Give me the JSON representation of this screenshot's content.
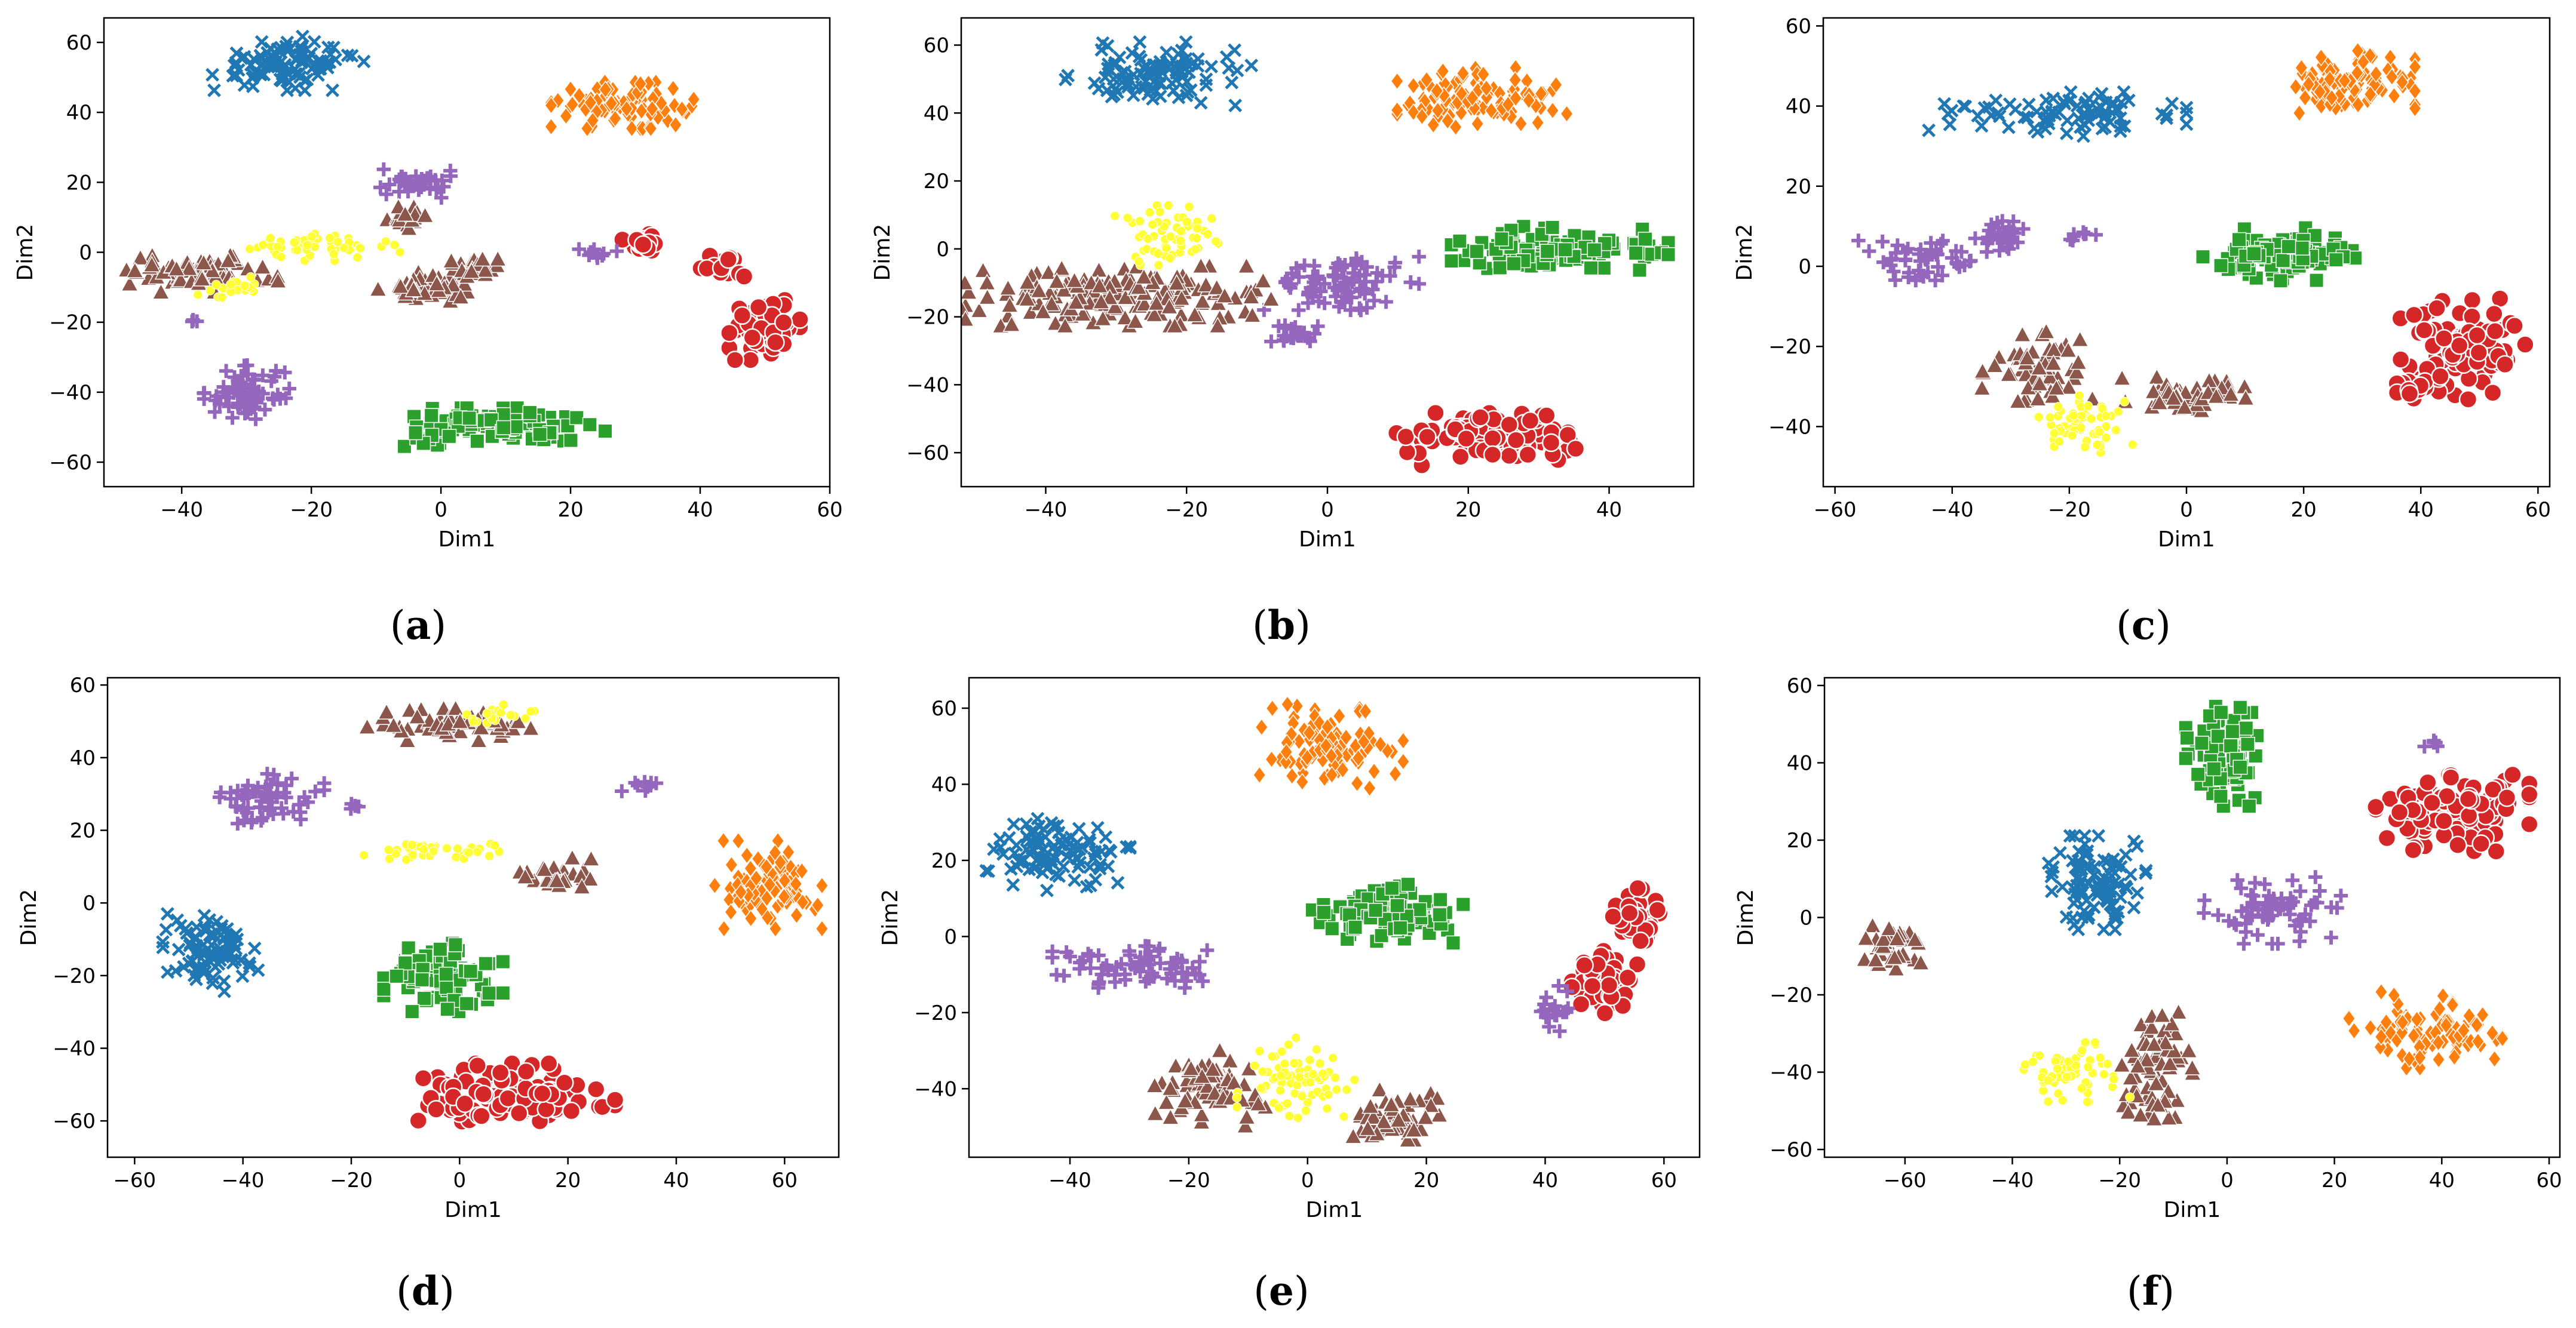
{
  "chart_data": [
    {
      "type": "scatter",
      "panel_label": "a",
      "xlabel": "Dim1",
      "ylabel": "Dim2",
      "xlim": [
        -52,
        60
      ],
      "ylim": [
        -67,
        67
      ],
      "xticks": [
        -40,
        -20,
        0,
        20,
        40,
        60
      ],
      "yticks": [
        -60,
        -40,
        -20,
        0,
        20,
        40,
        60
      ],
      "clusters": [
        {
          "cls": 0,
          "cx": -24,
          "cy": 54,
          "rx": 11,
          "ry": 7,
          "n": 100
        },
        {
          "cls": 1,
          "cx": 28,
          "cy": 42,
          "rx": 10,
          "ry": 6,
          "n": 100
        },
        {
          "cls": 2,
          "cx": 9,
          "cy": -50,
          "rx": 15,
          "ry": 5,
          "n": 100
        },
        {
          "cls": 3,
          "cx": 32,
          "cy": 3,
          "rx": 5,
          "ry": 2.5,
          "n": 25
        },
        {
          "cls": 3,
          "cx": 43,
          "cy": -4,
          "rx": 4,
          "ry": 3,
          "n": 20
        },
        {
          "cls": 3,
          "cx": 50,
          "cy": -22,
          "rx": 5,
          "ry": 8,
          "n": 50
        },
        {
          "cls": 4,
          "cx": -30,
          "cy": -40,
          "rx": 6,
          "ry": 7,
          "n": 70
        },
        {
          "cls": 4,
          "cx": -4,
          "cy": 20,
          "rx": 5,
          "ry": 4,
          "n": 35
        },
        {
          "cls": 4,
          "cx": 24,
          "cy": 0,
          "rx": 4,
          "ry": 1.5,
          "n": 10
        },
        {
          "cls": 4,
          "cx": -38,
          "cy": -20,
          "rx": 1,
          "ry": 1,
          "n": 3
        },
        {
          "cls": 5,
          "cx": -38,
          "cy": -6,
          "rx": 12,
          "ry": 5,
          "n": 80
        },
        {
          "cls": 5,
          "cx": -5,
          "cy": 10,
          "rx": 3,
          "ry": 3,
          "n": 20
        },
        {
          "cls": 5,
          "cx": -2,
          "cy": -10,
          "rx": 7,
          "ry": 4,
          "n": 50
        },
        {
          "cls": 5,
          "cx": 6,
          "cy": -4,
          "rx": 4,
          "ry": 3,
          "n": 25
        },
        {
          "cls": 6,
          "cx": -18,
          "cy": 2,
          "rx": 12,
          "ry": 4,
          "n": 55
        },
        {
          "cls": 6,
          "cx": -32,
          "cy": -10,
          "rx": 5,
          "ry": 3,
          "n": 20
        }
      ]
    },
    {
      "type": "scatter",
      "panel_label": "b",
      "xlabel": "Dim1",
      "ylabel": "Dim2",
      "xlim": [
        -52,
        52
      ],
      "ylim": [
        -70,
        68
      ],
      "xticks": [
        -40,
        -20,
        0,
        20,
        40
      ],
      "yticks": [
        -60,
        -40,
        -20,
        0,
        20,
        40,
        60
      ],
      "clusters": [
        {
          "cls": 0,
          "cx": -24,
          "cy": 51,
          "rx": 12,
          "ry": 9,
          "n": 100
        },
        {
          "cls": 1,
          "cx": 22,
          "cy": 44,
          "rx": 11,
          "ry": 9,
          "n": 100
        },
        {
          "cls": 2,
          "cx": 33,
          "cy": 0,
          "rx": 14,
          "ry": 6,
          "n": 110
        },
        {
          "cls": 3,
          "cx": 23,
          "cy": -56,
          "rx": 12,
          "ry": 7,
          "n": 110
        },
        {
          "cls": 4,
          "cx": 2,
          "cy": -10,
          "rx": 10,
          "ry": 8,
          "n": 90
        },
        {
          "cls": 4,
          "cx": -4,
          "cy": -25,
          "rx": 4,
          "ry": 4,
          "n": 20
        },
        {
          "cls": 5,
          "cx": -30,
          "cy": -14,
          "rx": 20,
          "ry": 8,
          "n": 180
        },
        {
          "cls": 6,
          "cx": -22,
          "cy": 4,
          "rx": 8,
          "ry": 8,
          "n": 60
        }
      ]
    },
    {
      "type": "scatter",
      "panel_label": "c",
      "xlabel": "Dim1",
      "ylabel": "Dim2",
      "xlim": [
        -62,
        62
      ],
      "ylim": [
        -55,
        62
      ],
      "xticks": [
        -60,
        -40,
        -20,
        0,
        20,
        40,
        60
      ],
      "yticks": [
        -40,
        -20,
        0,
        20,
        40,
        60
      ],
      "clusters": [
        {
          "cls": 0,
          "cx": -22,
          "cy": 38,
          "rx": 20,
          "ry": 5,
          "n": 90
        },
        {
          "cls": 1,
          "cx": 28,
          "cy": 45,
          "rx": 10,
          "ry": 8,
          "n": 100
        },
        {
          "cls": 2,
          "cx": 16,
          "cy": 3,
          "rx": 12,
          "ry": 6,
          "n": 100
        },
        {
          "cls": 3,
          "cx": 47,
          "cy": -20,
          "rx": 10,
          "ry": 12,
          "n": 90
        },
        {
          "cls": 3,
          "cx": 40,
          "cy": -30,
          "rx": 5,
          "ry": 4,
          "n": 25
        },
        {
          "cls": 4,
          "cx": -45,
          "cy": 2,
          "rx": 10,
          "ry": 5,
          "n": 50
        },
        {
          "cls": 4,
          "cx": -32,
          "cy": 8,
          "rx": 4,
          "ry": 4,
          "n": 30
        },
        {
          "cls": 4,
          "cx": -18,
          "cy": 8,
          "rx": 3,
          "ry": 2,
          "n": 8
        },
        {
          "cls": 5,
          "cx": -25,
          "cy": -25,
          "rx": 9,
          "ry": 8,
          "n": 70
        },
        {
          "cls": 5,
          "cx": 0,
          "cy": -32,
          "rx": 10,
          "ry": 4,
          "n": 50
        },
        {
          "cls": 6,
          "cx": -18,
          "cy": -40,
          "rx": 8,
          "ry": 7,
          "n": 60
        }
      ]
    },
    {
      "type": "scatter",
      "panel_label": "d",
      "xlabel": "Dim1",
      "ylabel": "Dim2",
      "xlim": [
        -65,
        70
      ],
      "ylim": [
        -70,
        62
      ],
      "xticks": [
        -60,
        -40,
        -20,
        0,
        20,
        40,
        60
      ],
      "yticks": [
        -60,
        -40,
        -20,
        0,
        20,
        40,
        60
      ],
      "clusters": [
        {
          "cls": 0,
          "cx": -46,
          "cy": -14,
          "rx": 8,
          "ry": 10,
          "n": 90
        },
        {
          "cls": 1,
          "cx": 57,
          "cy": 5,
          "rx": 9,
          "ry": 11,
          "n": 100
        },
        {
          "cls": 2,
          "cx": -3,
          "cy": -20,
          "rx": 10,
          "ry": 9,
          "n": 90
        },
        {
          "cls": 3,
          "cx": 10,
          "cy": -53,
          "rx": 17,
          "ry": 8,
          "n": 120
        },
        {
          "cls": 4,
          "cx": -36,
          "cy": 28,
          "rx": 10,
          "ry": 7,
          "n": 60
        },
        {
          "cls": 4,
          "cx": 33,
          "cy": 32,
          "rx": 3,
          "ry": 2,
          "n": 8
        },
        {
          "cls": 4,
          "cx": -19,
          "cy": 27,
          "rx": 1.5,
          "ry": 1.5,
          "n": 4
        },
        {
          "cls": 5,
          "cx": 0,
          "cy": 49,
          "rx": 16,
          "ry": 4,
          "n": 60
        },
        {
          "cls": 5,
          "cx": 18,
          "cy": 8,
          "rx": 7,
          "ry": 4,
          "n": 30
        },
        {
          "cls": 6,
          "cx": -5,
          "cy": 14,
          "rx": 12,
          "ry": 3,
          "n": 40
        },
        {
          "cls": 6,
          "cx": 5,
          "cy": 52,
          "rx": 8,
          "ry": 3,
          "n": 20
        }
      ]
    },
    {
      "type": "scatter",
      "panel_label": "e",
      "xlabel": "Dim1",
      "ylabel": "Dim2",
      "xlim": [
        -57,
        66
      ],
      "ylim": [
        -58,
        68
      ],
      "xticks": [
        -40,
        -20,
        0,
        20,
        40,
        60
      ],
      "yticks": [
        -40,
        -20,
        0,
        20,
        40,
        60
      ],
      "clusters": [
        {
          "cls": 0,
          "cx": -42,
          "cy": 22,
          "rx": 11,
          "ry": 9,
          "n": 100
        },
        {
          "cls": 1,
          "cx": 4,
          "cy": 50,
          "rx": 11,
          "ry": 10,
          "n": 100
        },
        {
          "cls": 2,
          "cx": 13,
          "cy": 6,
          "rx": 12,
          "ry": 7,
          "n": 100
        },
        {
          "cls": 3,
          "cx": 50,
          "cy": -12,
          "rx": 5,
          "ry": 9,
          "n": 60
        },
        {
          "cls": 3,
          "cx": 55,
          "cy": 5,
          "rx": 4,
          "ry": 7,
          "n": 50
        },
        {
          "cls": 4,
          "cx": -30,
          "cy": -8,
          "rx": 18,
          "ry": 5,
          "n": 70
        },
        {
          "cls": 4,
          "cx": 42,
          "cy": -20,
          "rx": 4,
          "ry": 8,
          "n": 20
        },
        {
          "cls": 5,
          "cx": -17,
          "cy": -40,
          "rx": 9,
          "ry": 9,
          "n": 70
        },
        {
          "cls": 5,
          "cx": 14,
          "cy": -47,
          "rx": 8,
          "ry": 6,
          "n": 60
        },
        {
          "cls": 6,
          "cx": -2,
          "cy": -38,
          "rx": 9,
          "ry": 11,
          "n": 70
        }
      ]
    },
    {
      "type": "scatter",
      "panel_label": "f",
      "xlabel": "Dim1",
      "ylabel": "Dim2",
      "xlim": [
        -75,
        62
      ],
      "ylim": [
        -62,
        62
      ],
      "xticks": [
        -60,
        -40,
        -20,
        0,
        20,
        40,
        60
      ],
      "yticks": [
        -60,
        -40,
        -20,
        0,
        20,
        40,
        60
      ],
      "clusters": [
        {
          "cls": 0,
          "cx": -25,
          "cy": 9,
          "rx": 9,
          "ry": 11,
          "n": 100
        },
        {
          "cls": 1,
          "cx": 37,
          "cy": -29,
          "rx": 13,
          "ry": 9,
          "n": 90
        },
        {
          "cls": 2,
          "cx": 0,
          "cy": 42,
          "rx": 7,
          "ry": 12,
          "n": 90
        },
        {
          "cls": 3,
          "cx": 42,
          "cy": 27,
          "rx": 13,
          "ry": 9,
          "n": 110
        },
        {
          "cls": 4,
          "cx": 8,
          "cy": 2,
          "rx": 12,
          "ry": 8,
          "n": 70
        },
        {
          "cls": 4,
          "cx": 38,
          "cy": 45,
          "rx": 2,
          "ry": 2,
          "n": 5
        },
        {
          "cls": 5,
          "cx": -63,
          "cy": -7,
          "rx": 6,
          "ry": 7,
          "n": 40
        },
        {
          "cls": 5,
          "cx": -13,
          "cy": -40,
          "rx": 6,
          "ry": 14,
          "n": 70
        },
        {
          "cls": 6,
          "cx": -28,
          "cy": -40,
          "rx": 9,
          "ry": 7,
          "n": 60
        }
      ]
    }
  ],
  "palette": [
    "#1f77b4",
    "#ff7f0e",
    "#2ca02c",
    "#d62728",
    "#9467bd",
    "#8c564b",
    "#ffff33"
  ],
  "markers": [
    "x-marker",
    "diamond-marker",
    "square-marker",
    "circle-marker",
    "plus-marker",
    "triangle-marker",
    "dot-marker"
  ]
}
